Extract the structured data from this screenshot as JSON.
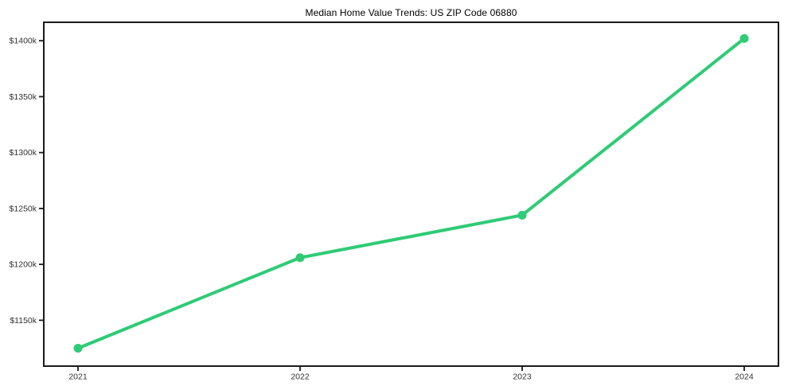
{
  "chart_data": {
    "type": "line",
    "title": "Median Home Value Trends: US ZIP Code 06880",
    "x": [
      2021,
      2022,
      2023,
      2024
    ],
    "xtick_labels": [
      "2021",
      "2022",
      "2023",
      "2024"
    ],
    "series": [
      {
        "name": "Median Home Value",
        "values": [
          1125,
          1206,
          1244,
          1402
        ]
      }
    ],
    "value_unit": "thousands of USD",
    "ytick_values": [
      1150,
      1200,
      1250,
      1300,
      1350,
      1400
    ],
    "ytick_labels": [
      "$1150k",
      "$1200k",
      "$1250k",
      "$1300k",
      "$1350k",
      "$1400k"
    ],
    "ylim": [
      1109,
      1416.5
    ],
    "grid": false,
    "legend": "none",
    "colors": {
      "line": "#2fcb76",
      "marker": "#2fcb76",
      "axis": "#1a1a1a",
      "tick_text": "#333333",
      "title_text": "#000000",
      "background": "#ffffff"
    }
  }
}
